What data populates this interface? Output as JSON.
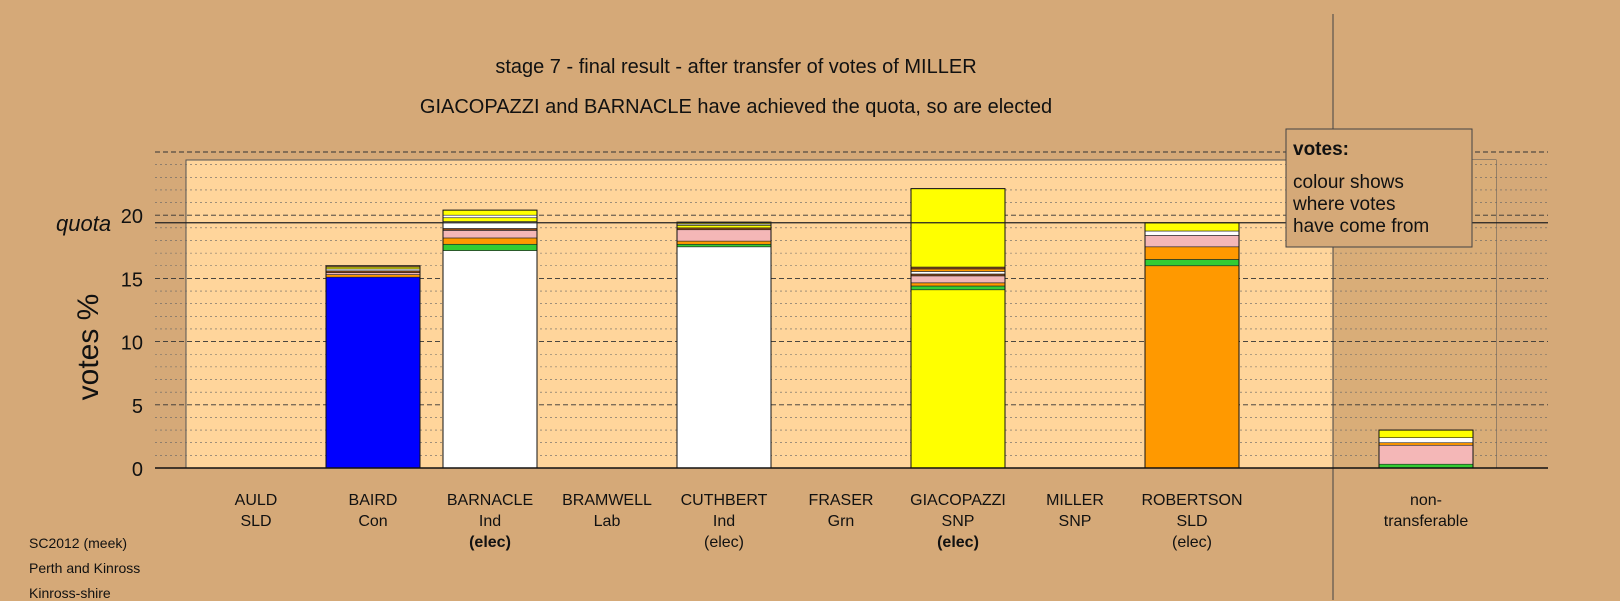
{
  "chart_data": {
    "type": "bar",
    "stacked": true,
    "title": "stage 7 - final result - after transfer of votes of MILLER",
    "subtitle": "GIACOPAZZI and BARNACLE have achieved the quota, so are elected",
    "ylabel": "votes %",
    "quota_label": "quota",
    "quota_value": 19.4,
    "ylim": [
      0,
      25
    ],
    "yticks": [
      0,
      5,
      10,
      15,
      20
    ],
    "grid": "dashed",
    "legend": {
      "placement": "top-right",
      "title": "votes:",
      "lines": [
        "colour shows",
        "where votes",
        "have come from"
      ]
    },
    "categories": [
      {
        "name": "AULD",
        "party": "SLD",
        "status": "",
        "bold": false,
        "segments": []
      },
      {
        "name": "BAIRD",
        "party": "Con",
        "status": "",
        "bold": false,
        "segments": [
          {
            "value": 15.1,
            "color": "#0000ff"
          },
          {
            "value": 0.2,
            "color": "#ff9900"
          },
          {
            "value": 0.15,
            "color": "#f4b7b7"
          },
          {
            "value": 0.15,
            "color": "#8b4513"
          },
          {
            "value": 0.15,
            "color": "#ffffff"
          },
          {
            "value": 0.15,
            "color": "#ffff00"
          },
          {
            "value": 0.1,
            "color": "#c08040"
          }
        ]
      },
      {
        "name": "BARNACLE",
        "party": "Ind",
        "status": "(elec)",
        "bold": true,
        "segments": [
          {
            "value": 17.2,
            "color": "#ffffff"
          },
          {
            "value": 0.5,
            "color": "#33cc33"
          },
          {
            "value": 0.5,
            "color": "#ff9900"
          },
          {
            "value": 0.6,
            "color": "#f4b7b7"
          },
          {
            "value": 0.15,
            "color": "#8b4513"
          },
          {
            "value": 0.55,
            "color": "#ffffff"
          },
          {
            "value": 0.3,
            "color": "#ffff00"
          },
          {
            "value": 0.2,
            "color": "#ffffff"
          },
          {
            "value": 0.4,
            "color": "#ffff00"
          }
        ]
      },
      {
        "name": "BRAMWELL",
        "party": "Lab",
        "status": "",
        "bold": false,
        "segments": []
      },
      {
        "name": "CUTHBERT",
        "party": "Ind",
        "status": "(elec)",
        "bold": false,
        "segments": [
          {
            "value": 17.5,
            "color": "#ffffff"
          },
          {
            "value": 0.2,
            "color": "#33cc33"
          },
          {
            "value": 0.25,
            "color": "#ff9900"
          },
          {
            "value": 0.9,
            "color": "#f4b7b7"
          },
          {
            "value": 0.15,
            "color": "#8b4513"
          },
          {
            "value": 0.2,
            "color": "#ffff00"
          },
          {
            "value": 0.1,
            "color": "#ffffff"
          },
          {
            "value": 0.15,
            "color": "#ffff00"
          }
        ]
      },
      {
        "name": "FRASER",
        "party": "Grn",
        "status": "",
        "bold": false,
        "segments": []
      },
      {
        "name": "GIACOPAZZI",
        "party": "SNP",
        "status": "(elec)",
        "bold": true,
        "segments": [
          {
            "value": 14.1,
            "color": "#ffff00"
          },
          {
            "value": 0.3,
            "color": "#33cc33"
          },
          {
            "value": 0.25,
            "color": "#ff9900"
          },
          {
            "value": 0.55,
            "color": "#f4b7b7"
          },
          {
            "value": 0.15,
            "color": "#8b4513"
          },
          {
            "value": 0.2,
            "color": "#ffffff"
          },
          {
            "value": 0.2,
            "color": "#ff9900"
          },
          {
            "value": 0.15,
            "color": "#8b4513"
          },
          {
            "value": 6.2,
            "color": "#ffff00"
          }
        ]
      },
      {
        "name": "MILLER",
        "party": "SNP",
        "status": "",
        "bold": false,
        "segments": []
      },
      {
        "name": "ROBERTSON",
        "party": "SLD",
        "status": "(elec)",
        "bold": false,
        "segments": [
          {
            "value": 16.0,
            "color": "#ff9900"
          },
          {
            "value": 0.5,
            "color": "#33cc33"
          },
          {
            "value": 1.0,
            "color": "#ff9900"
          },
          {
            "value": 0.9,
            "color": "#f4b7b7"
          },
          {
            "value": 0.35,
            "color": "#ffffff"
          },
          {
            "value": 0.65,
            "color": "#ffff00"
          }
        ]
      },
      {
        "name": "",
        "party": "",
        "status": "",
        "bold": false,
        "segments": []
      },
      {
        "name": "non-",
        "party": "transferable",
        "status": "",
        "bold": false,
        "segments": [
          {
            "value": 0.3,
            "color": "#33cc33"
          },
          {
            "value": 1.5,
            "color": "#f4b7b7"
          },
          {
            "value": 0.2,
            "color": "#ff9900"
          },
          {
            "value": 0.4,
            "color": "#ffffff"
          },
          {
            "value": 0.6,
            "color": "#ffff00"
          }
        ]
      }
    ]
  },
  "footer": {
    "line1": "SC2012 (meek)",
    "line2": "Perth and Kinross",
    "line3": "Kinross-shire"
  },
  "colors": {
    "background": "#d5a978",
    "plot_area": "#ffd59b",
    "right_panel": "#d9ad78"
  }
}
